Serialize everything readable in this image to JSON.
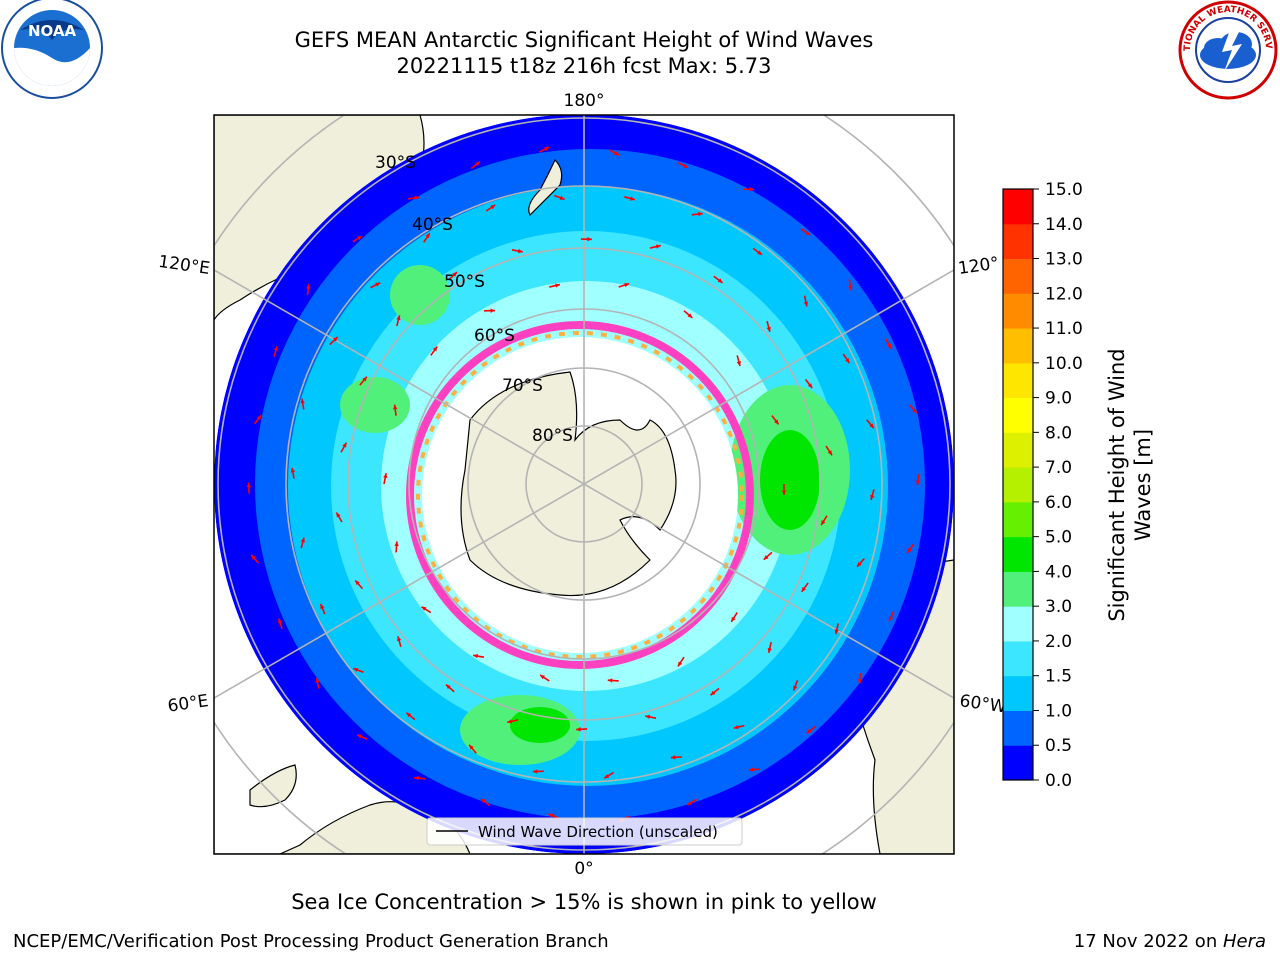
{
  "title": {
    "line1": "GEFS MEAN Antarctic Significant Height of Wind Waves",
    "line2": "20221115 t18z 216h fcst   Max: 5.73"
  },
  "map": {
    "projection": "south-polar-stereographic",
    "lon_labels": {
      "top": "180°",
      "bottom": "0°",
      "left_upper": "120°E",
      "left_lower": "60°E",
      "right_upper": "120°",
      "right_lower": "60°W"
    },
    "lat_labels": [
      "30°S",
      "40°S",
      "50°S",
      "60°S",
      "70°S",
      "80°S"
    ],
    "legend_label": "Wind Wave Direction (unscaled)"
  },
  "colorbar": {
    "label_line1": "Significant Height of Wind",
    "label_line2": "Waves [m]",
    "ticks": [
      "0.0",
      "0.5",
      "1.0",
      "1.5",
      "2.0",
      "3.0",
      "4.0",
      "5.0",
      "6.0",
      "7.0",
      "8.0",
      "9.0",
      "10.0",
      "11.0",
      "12.0",
      "13.0",
      "14.0",
      "15.0"
    ],
    "colors": [
      "#0000ff",
      "#0064ff",
      "#00c8ff",
      "#3ce6ff",
      "#a0ffff",
      "#50f07a",
      "#00e600",
      "#64f000",
      "#b4f000",
      "#dcf000",
      "#ffff00",
      "#ffe600",
      "#ffbe00",
      "#ff8c00",
      "#ff6400",
      "#ff3200",
      "#ff0000"
    ]
  },
  "footer": {
    "ice_note": "Sea Ice Concentration > 15% is shown in pink to yellow",
    "credit": "NCEP/EMC/Verification Post Processing Product Generation Branch",
    "date": "17 Nov 2022 on ",
    "machine": "Hera"
  },
  "logos": {
    "left": "NOAA",
    "right": "NATIONAL WEATHER SERVICE"
  }
}
